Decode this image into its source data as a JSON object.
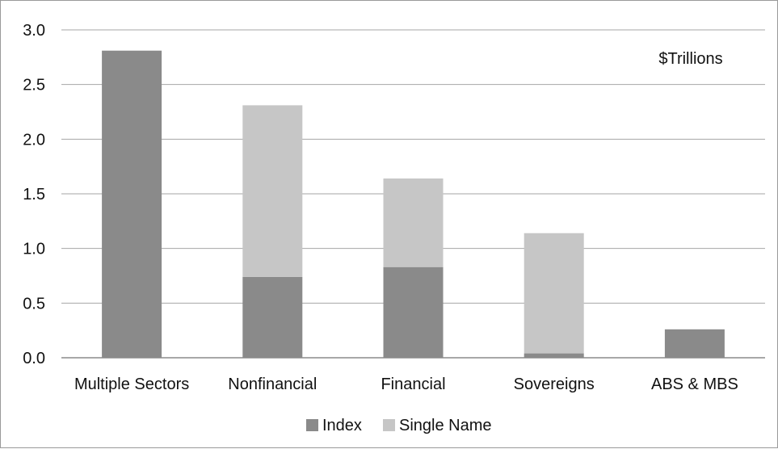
{
  "chart_data": {
    "type": "bar",
    "stacked": true,
    "categories": [
      "Multiple Sectors",
      "Nonfinancial",
      "Financial",
      "Sovereigns",
      "ABS & MBS"
    ],
    "series": [
      {
        "name": "Index",
        "values": [
          2.81,
          0.74,
          0.83,
          0.04,
          0.26
        ],
        "color": "#8a8a8a"
      },
      {
        "name": "Single Name",
        "values": [
          0.0,
          1.57,
          0.81,
          1.1,
          0.0
        ],
        "color": "#c6c6c6"
      }
    ],
    "yticks": [
      "0.0",
      "0.5",
      "1.0",
      "1.5",
      "2.0",
      "2.5",
      "3.0"
    ],
    "ylim": [
      0,
      3.0
    ],
    "annotation": "$Trillions",
    "grid": true,
    "legend_position": "bottom"
  }
}
